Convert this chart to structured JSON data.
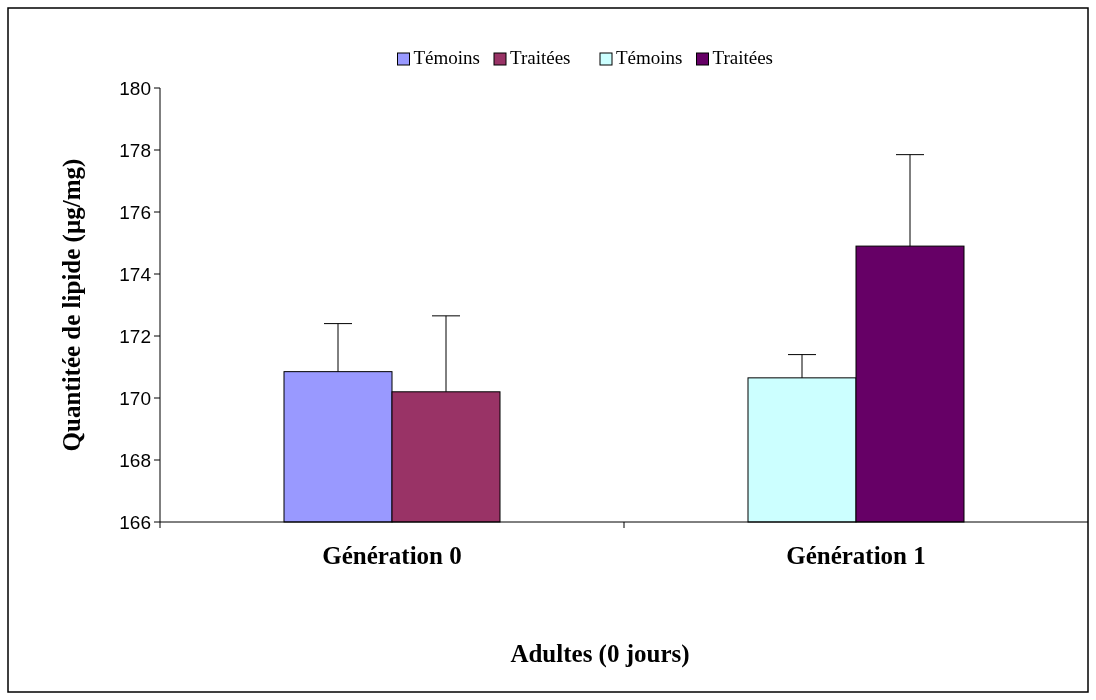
{
  "chart_data": {
    "type": "bar",
    "xlabel": "Adultes (0 jours)",
    "ylabel": "Quantitée de lipide (µg/mg)",
    "categories": [
      "Génération 0",
      "Génération 1"
    ],
    "series": [
      {
        "name": "Témoins",
        "color": "#9999ff",
        "values": [
          170.85,
          null
        ],
        "errors": [
          [
            170.85,
            172.4
          ],
          null
        ]
      },
      {
        "name": "Traitées",
        "color": "#993366",
        "values": [
          170.2,
          null
        ],
        "errors": [
          [
            170.2,
            172.65
          ],
          null
        ]
      },
      {
        "name": "Témoins",
        "color": "#ccffff",
        "values": [
          null,
          170.65
        ],
        "errors": [
          null,
          [
            170.65,
            171.4
          ]
        ]
      },
      {
        "name": "Traitées",
        "color": "#660066",
        "values": [
          null,
          174.9
        ],
        "errors": [
          null,
          [
            174.9,
            177.85
          ]
        ]
      }
    ],
    "ylim": [
      166,
      180
    ],
    "yticks": [
      166,
      168,
      170,
      172,
      174,
      176,
      178,
      180
    ],
    "grid": false,
    "legend": "top"
  }
}
